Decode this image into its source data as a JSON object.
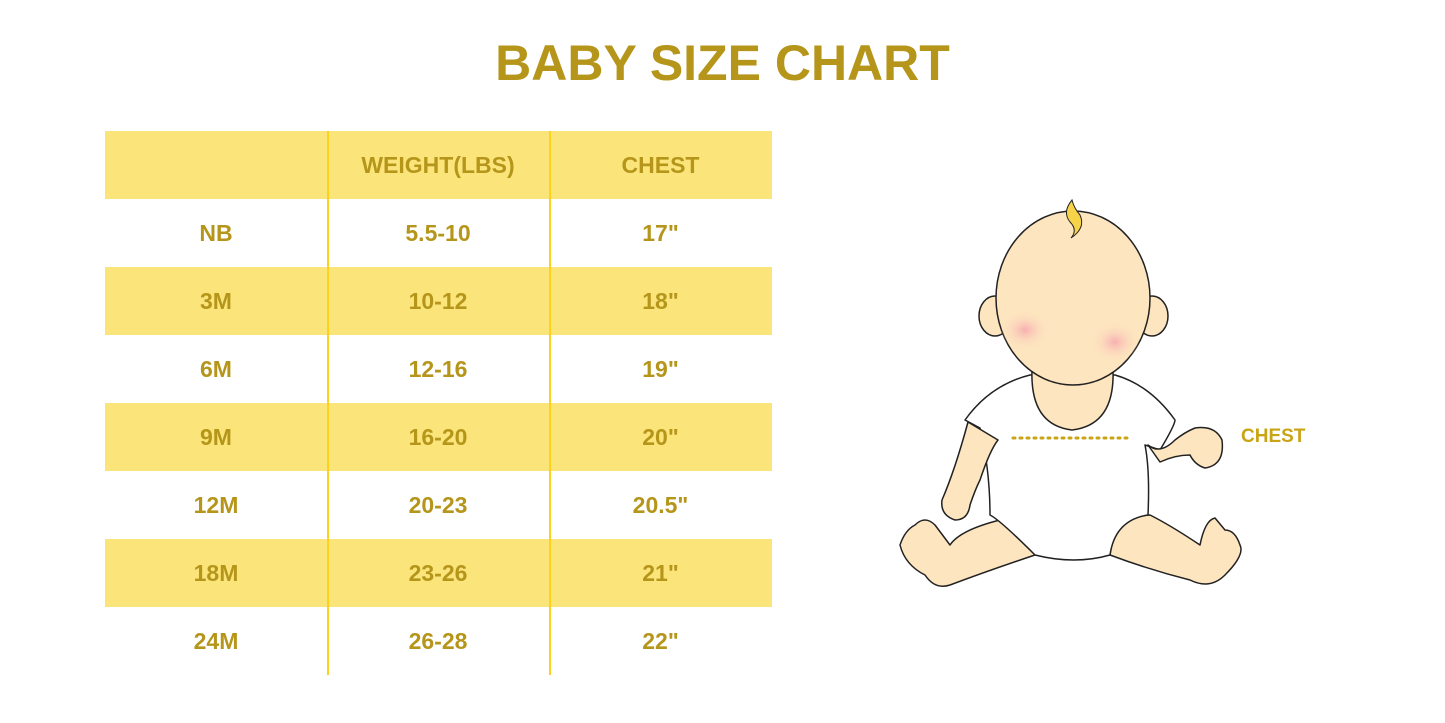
{
  "title": "BABY SIZE CHART",
  "table": {
    "headers": [
      "",
      "WEIGHT(LBS)",
      "CHEST"
    ],
    "rows": [
      [
        "NB",
        "5.5-10",
        "17\""
      ],
      [
        "3M",
        "10-12",
        "18\""
      ],
      [
        "6M",
        "12-16",
        "19\""
      ],
      [
        "9M",
        "16-20",
        "20\""
      ],
      [
        "12M",
        "20-23",
        "20.5\""
      ],
      [
        "18M",
        "23-26",
        "21\""
      ],
      [
        "24M",
        "26-28",
        "22\""
      ]
    ]
  },
  "illustration": {
    "label": "CHEST"
  },
  "colors": {
    "text": "#b5961b",
    "band": "#fbe57a",
    "divider": "#fcd21d",
    "skin": "#fde5bf"
  }
}
